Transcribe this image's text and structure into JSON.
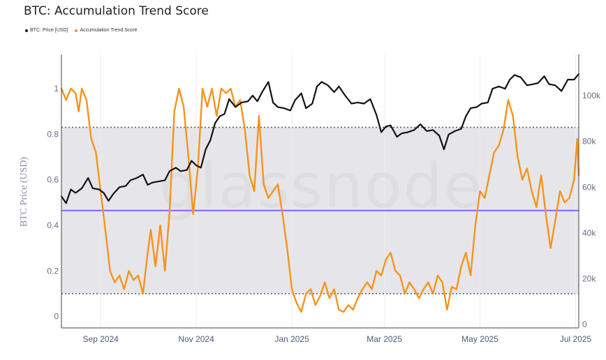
{
  "title": "BTC: Accumulation Trend Score",
  "watermark": "glassnode",
  "legend": [
    {
      "label": "BTC: Price [USD]",
      "color": "#111111"
    },
    {
      "label": "Accumulation Trend Score",
      "color": "#f7931a"
    }
  ],
  "chart_data": {
    "type": "line",
    "x_range": [
      "2024-08-07",
      "2025-07-03"
    ],
    "x_ticks": [
      {
        "date": "2024-09-01",
        "label": "Sep 2024"
      },
      {
        "date": "2024-11-01",
        "label": "Nov 2024"
      },
      {
        "date": "2025-01-01",
        "label": "Jan 2025"
      },
      {
        "date": "2025-03-01",
        "label": "Mar 2025"
      },
      {
        "date": "2025-05-01",
        "label": "May 2025"
      },
      {
        "date": "2025-07-01",
        "label": "Jul 2025"
      }
    ],
    "y_left": {
      "range": [
        -0.05,
        1.15
      ],
      "ticks": [
        0,
        0.2,
        0.4,
        0.6,
        0.8,
        1
      ],
      "tick_labels": [
        "0",
        "0.2",
        "0.4",
        "0.6",
        "0.8",
        "1"
      ]
    },
    "y_right": {
      "label": "BTC Price (USD)",
      "range": [
        -1500,
        118000
      ],
      "ticks": [
        0,
        20000,
        40000,
        60000,
        80000,
        100000
      ],
      "tick_labels": [
        "0",
        "20k",
        "40k",
        "60k",
        "80k",
        "100k"
      ]
    },
    "band": {
      "low": 0.1,
      "high": 0.83
    },
    "midline": {
      "start": 0.465,
      "end": 0.465,
      "color": "#8b5cf6"
    },
    "colors": {
      "price": "#111111",
      "score": "#f7931a",
      "band": "#e6e6ea",
      "dotted": "#555555"
    },
    "series": [
      {
        "name": "BTC: Price [USD]",
        "axis": "right",
        "dates": [
          "2024-08-07",
          "2024-08-10",
          "2024-08-13",
          "2024-08-16",
          "2024-08-20",
          "2024-08-24",
          "2024-08-27",
          "2024-08-31",
          "2024-09-03",
          "2024-09-06",
          "2024-09-09",
          "2024-09-13",
          "2024-09-17",
          "2024-09-20",
          "2024-09-24",
          "2024-09-28",
          "2024-10-01",
          "2024-10-04",
          "2024-10-08",
          "2024-10-12",
          "2024-10-15",
          "2024-10-19",
          "2024-10-22",
          "2024-10-26",
          "2024-10-29",
          "2024-11-01",
          "2024-11-04",
          "2024-11-07",
          "2024-11-10",
          "2024-11-13",
          "2024-11-16",
          "2024-11-19",
          "2024-11-22",
          "2024-11-26",
          "2024-11-30",
          "2024-12-04",
          "2024-12-07",
          "2024-12-10",
          "2024-12-13",
          "2024-12-17",
          "2024-12-20",
          "2024-12-23",
          "2024-12-27",
          "2024-12-31",
          "2025-01-03",
          "2025-01-07",
          "2025-01-10",
          "2025-01-14",
          "2025-01-17",
          "2025-01-20",
          "2025-01-24",
          "2025-01-28",
          "2025-01-31",
          "2025-02-04",
          "2025-02-08",
          "2025-02-12",
          "2025-02-16",
          "2025-02-20",
          "2025-02-24",
          "2025-02-27",
          "2025-03-02",
          "2025-03-05",
          "2025-03-09",
          "2025-03-12",
          "2025-03-16",
          "2025-03-20",
          "2025-03-24",
          "2025-03-28",
          "2025-04-01",
          "2025-04-05",
          "2025-04-08",
          "2025-04-11",
          "2025-04-15",
          "2025-04-19",
          "2025-04-22",
          "2025-04-25",
          "2025-04-29",
          "2025-05-02",
          "2025-05-06",
          "2025-05-09",
          "2025-05-13",
          "2025-05-17",
          "2025-05-20",
          "2025-05-23",
          "2025-05-27",
          "2025-05-31",
          "2025-06-04",
          "2025-06-07",
          "2025-06-11",
          "2025-06-14",
          "2025-06-18",
          "2025-06-22",
          "2025-06-26",
          "2025-06-30",
          "2025-07-03"
        ],
        "values": [
          56000,
          53000,
          59000,
          57500,
          59500,
          64000,
          59500,
          59000,
          57500,
          54000,
          57000,
          60000,
          60500,
          63000,
          64000,
          65500,
          61000,
          62000,
          62500,
          63000,
          67000,
          68500,
          67000,
          67500,
          71500,
          69500,
          68500,
          76500,
          80500,
          88000,
          91000,
          92000,
          98500,
          95000,
          97000,
          97500,
          100000,
          97500,
          101500,
          106000,
          97000,
          95000,
          94500,
          93500,
          98000,
          101000,
          94500,
          96500,
          104000,
          106000,
          104500,
          101500,
          104000,
          100000,
          96500,
          97000,
          96500,
          98500,
          91500,
          84000,
          86500,
          87000,
          82000,
          83500,
          84000,
          85000,
          87500,
          84500,
          85000,
          82500,
          76500,
          83000,
          84500,
          85500,
          91000,
          94500,
          95000,
          96500,
          97000,
          103000,
          104000,
          103000,
          107000,
          109000,
          108000,
          104500,
          105000,
          105500,
          108500,
          105000,
          104500,
          102000,
          107000,
          107000,
          109500
        ]
      },
      {
        "name": "Accumulation Trend Score",
        "axis": "left",
        "dates": [
          "2024-08-07",
          "2024-08-10",
          "2024-08-13",
          "2024-08-16",
          "2024-08-18",
          "2024-08-20",
          "2024-08-23",
          "2024-08-26",
          "2024-08-29",
          "2024-09-01",
          "2024-09-04",
          "2024-09-07",
          "2024-09-10",
          "2024-09-13",
          "2024-09-16",
          "2024-09-19",
          "2024-09-22",
          "2024-09-25",
          "2024-09-28",
          "2024-10-01",
          "2024-10-03",
          "2024-10-06",
          "2024-10-09",
          "2024-10-12",
          "2024-10-15",
          "2024-10-18",
          "2024-10-21",
          "2024-10-24",
          "2024-10-27",
          "2024-10-30",
          "2024-11-02",
          "2024-11-05",
          "2024-11-08",
          "2024-11-11",
          "2024-11-14",
          "2024-11-17",
          "2024-11-20",
          "2024-11-23",
          "2024-11-26",
          "2024-11-29",
          "2024-12-02",
          "2024-12-05",
          "2024-12-08",
          "2024-12-11",
          "2024-12-14",
          "2024-12-17",
          "2024-12-20",
          "2024-12-23",
          "2024-12-26",
          "2024-12-29",
          "2025-01-01",
          "2025-01-04",
          "2025-01-07",
          "2025-01-10",
          "2025-01-13",
          "2025-01-16",
          "2025-01-19",
          "2025-01-22",
          "2025-01-25",
          "2025-01-28",
          "2025-01-31",
          "2025-02-03",
          "2025-02-06",
          "2025-02-09",
          "2025-02-12",
          "2025-02-15",
          "2025-02-18",
          "2025-02-21",
          "2025-02-24",
          "2025-02-27",
          "2025-03-02",
          "2025-03-05",
          "2025-03-08",
          "2025-03-11",
          "2025-03-14",
          "2025-03-17",
          "2025-03-20",
          "2025-03-23",
          "2025-03-26",
          "2025-03-29",
          "2025-04-01",
          "2025-04-04",
          "2025-04-07",
          "2025-04-10",
          "2025-04-13",
          "2025-04-16",
          "2025-04-19",
          "2025-04-22",
          "2025-04-25",
          "2025-04-28",
          "2025-05-01",
          "2025-05-04",
          "2025-05-07",
          "2025-05-10",
          "2025-05-13",
          "2025-05-16",
          "2025-05-19",
          "2025-05-22",
          "2025-05-25",
          "2025-05-28",
          "2025-05-31",
          "2025-06-03",
          "2025-06-06",
          "2025-06-09",
          "2025-06-12",
          "2025-06-15",
          "2025-06-18",
          "2025-06-21",
          "2025-06-24",
          "2025-06-27",
          "2025-06-30",
          "2025-07-02",
          "2025-07-03"
        ],
        "values": [
          1.0,
          0.95,
          1.0,
          0.98,
          0.9,
          1.0,
          0.95,
          0.78,
          0.72,
          0.55,
          0.38,
          0.2,
          0.15,
          0.18,
          0.12,
          0.2,
          0.16,
          0.18,
          0.1,
          0.28,
          0.38,
          0.22,
          0.4,
          0.2,
          0.46,
          0.9,
          1.0,
          0.92,
          0.7,
          0.45,
          0.65,
          1.0,
          0.92,
          1.0,
          0.88,
          1.0,
          0.98,
          1.0,
          0.92,
          0.95,
          0.82,
          0.62,
          0.55,
          0.88,
          0.58,
          0.52,
          0.55,
          0.58,
          0.45,
          0.3,
          0.12,
          0.06,
          0.02,
          0.1,
          0.12,
          0.05,
          0.09,
          0.15,
          0.08,
          0.12,
          0.03,
          0.02,
          0.05,
          0.03,
          0.08,
          0.12,
          0.15,
          0.12,
          0.2,
          0.18,
          0.25,
          0.28,
          0.2,
          0.18,
          0.1,
          0.15,
          0.12,
          0.08,
          0.12,
          0.15,
          0.1,
          0.18,
          0.15,
          0.03,
          0.13,
          0.12,
          0.22,
          0.28,
          0.18,
          0.4,
          0.55,
          0.52,
          0.62,
          0.72,
          0.75,
          0.82,
          0.95,
          0.88,
          0.7,
          0.6,
          0.65,
          0.55,
          0.48,
          0.62,
          0.45,
          0.3,
          0.42,
          0.55,
          0.5,
          0.52,
          0.6,
          0.78,
          0.62
        ]
      }
    ]
  }
}
